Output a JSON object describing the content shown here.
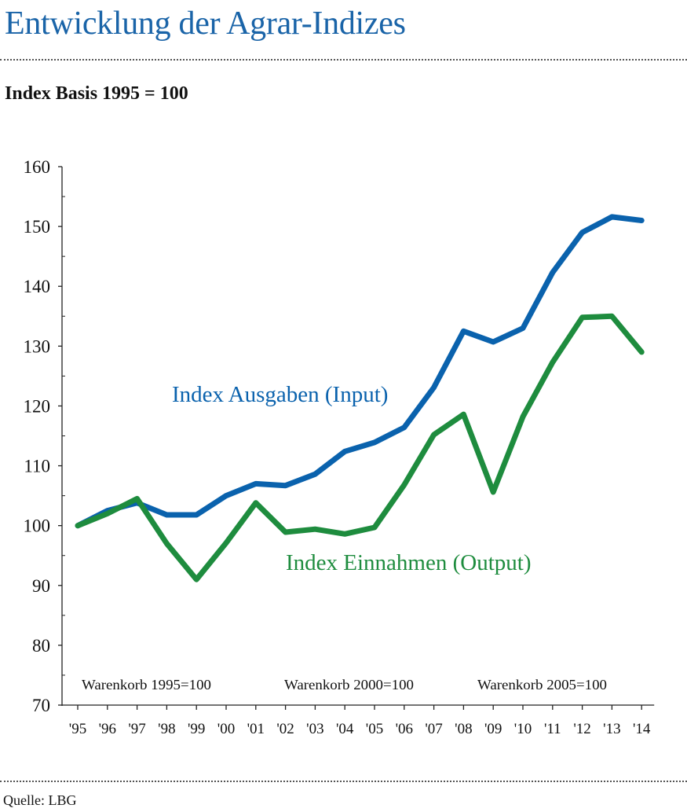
{
  "title": "Entwicklung der Agrar-Indizes",
  "subtitle": "Index Basis 1995 = 100",
  "source": "Quelle: LBG",
  "chart_data": {
    "type": "line",
    "title": "Entwicklung der Agrar-Indizes",
    "subtitle": "Index Basis 1995 = 100",
    "categories": [
      "'95",
      "'96",
      "'97",
      "'98",
      "'99",
      "'00",
      "'01",
      "'02",
      "'03",
      "'04",
      "'05",
      "'06",
      "'07",
      "'08",
      "'09",
      "'10",
      "'11",
      "'12",
      "'13",
      "'14"
    ],
    "ylim": [
      70,
      160
    ],
    "yticks": [
      70,
      80,
      90,
      100,
      110,
      120,
      130,
      140,
      150,
      160
    ],
    "grid": false,
    "series": [
      {
        "name": "Index Ausgaben (Input)",
        "color": "#0a62ad",
        "values": [
          100.0,
          102.5,
          103.8,
          101.8,
          101.8,
          105.0,
          107.0,
          106.7,
          108.6,
          112.4,
          113.9,
          116.4,
          123.1,
          132.5,
          130.7,
          133.0,
          142.3,
          149.0,
          151.6,
          151.0
        ]
      },
      {
        "name": "Index Einnahmen (Output)",
        "color": "#1e8c3e",
        "values": [
          100.0,
          102.0,
          104.5,
          97.0,
          91.0,
          97.1,
          103.8,
          98.9,
          99.4,
          98.6,
          99.7,
          106.8,
          115.2,
          118.6,
          105.6,
          118.2,
          127.3,
          134.8,
          135.0,
          129.0
        ]
      }
    ],
    "annotations": [
      "Warenkorb 1995=100",
      "Warenkorb 2000=100",
      "Warenkorb 2005=100"
    ]
  }
}
